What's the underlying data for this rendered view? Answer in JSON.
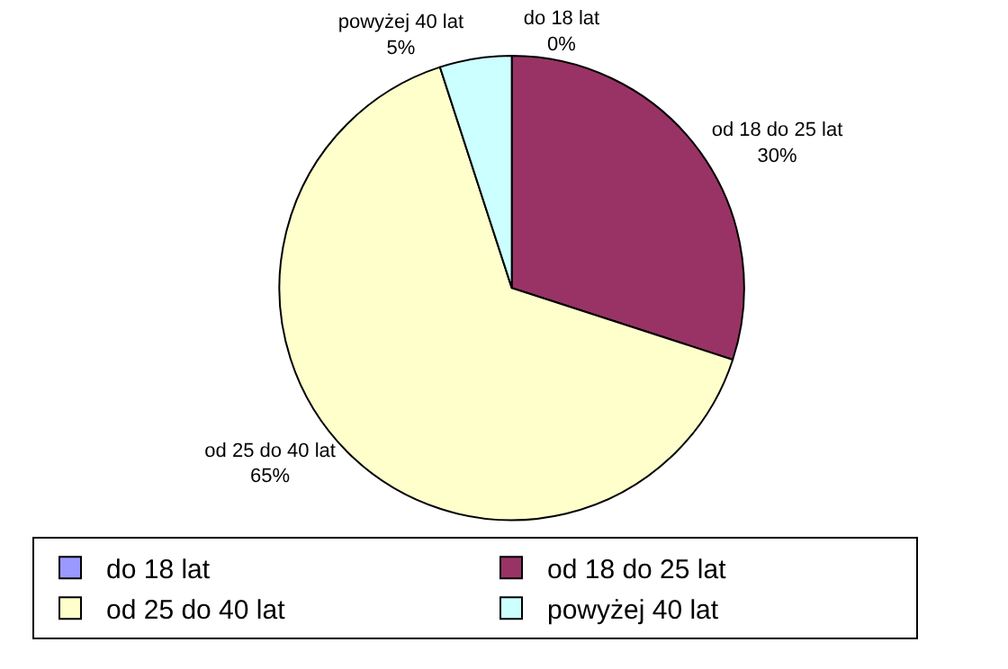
{
  "chart_data": {
    "type": "pie",
    "categories": [
      "do 18 lat",
      "od 18 do 25 lat",
      "od 25 do 40 lat",
      "powyżej 40 lat"
    ],
    "values": [
      0,
      30,
      65,
      5
    ],
    "value_labels": [
      "0%",
      "30%",
      "65%",
      "5%"
    ],
    "colors": [
      "#9999ff",
      "#993366",
      "#ffffcc",
      "#ccffff"
    ],
    "legend": "bottom"
  }
}
